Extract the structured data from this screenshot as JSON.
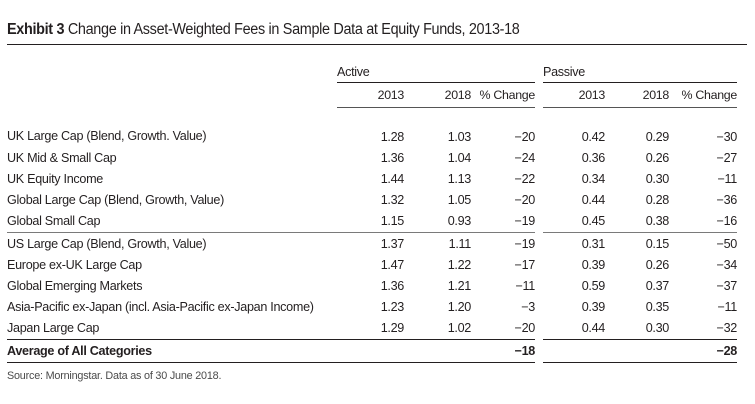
{
  "exhibit": {
    "label": "Exhibit 3",
    "title": "Change in Asset-Weighted Fees in Sample Data at Equity Funds, 2013-18"
  },
  "table": {
    "group_headers": {
      "active": "Active",
      "passive": "Passive"
    },
    "column_headers": {
      "active": [
        "2013",
        "2018",
        "% Change"
      ],
      "passive": [
        "2013",
        "2018",
        "% Change"
      ]
    },
    "rows": [
      {
        "category": "UK Large Cap (Blend, Growth. Value)",
        "active": [
          "1.28",
          "1.03",
          "−20"
        ],
        "passive": [
          "0.42",
          "0.29",
          "−30"
        ]
      },
      {
        "category": "UK Mid & Small Cap",
        "active": [
          "1.36",
          "1.04",
          "−24"
        ],
        "passive": [
          "0.36",
          "0.26",
          "−27"
        ]
      },
      {
        "category": "UK Equity Income",
        "active": [
          "1.44",
          "1.13",
          "−22"
        ],
        "passive": [
          "0.34",
          "0.30",
          "−11"
        ]
      },
      {
        "category": "Global Large Cap (Blend, Growth, Value)",
        "active": [
          "1.32",
          "1.05",
          "−20"
        ],
        "passive": [
          "0.44",
          "0.28",
          "−36"
        ]
      },
      {
        "category": "Global Small Cap",
        "active": [
          "1.15",
          "0.93",
          "−19"
        ],
        "passive": [
          "0.45",
          "0.38",
          "−16"
        ]
      },
      {
        "category": "US Large Cap (Blend, Growth, Value)",
        "active": [
          "1.37",
          "1.11",
          "−19"
        ],
        "passive": [
          "0.31",
          "0.15",
          "−50"
        ]
      },
      {
        "category": "Europe ex-UK Large Cap",
        "active": [
          "1.47",
          "1.22",
          "−17"
        ],
        "passive": [
          "0.39",
          "0.26",
          "−34"
        ]
      },
      {
        "category": "Global Emerging Markets",
        "active": [
          "1.36",
          "1.21",
          "−11"
        ],
        "passive": [
          "0.59",
          "0.37",
          "−37"
        ]
      },
      {
        "category": "Asia-Pacific ex-Japan (incl. Asia-Pacific ex-Japan Income)",
        "active": [
          "1.23",
          "1.20",
          "−3"
        ],
        "passive": [
          "0.39",
          "0.35",
          "−11"
        ]
      },
      {
        "category": "Japan Large Cap",
        "active": [
          "1.29",
          "1.02",
          "−20"
        ],
        "passive": [
          "0.44",
          "0.30",
          "−32"
        ]
      }
    ],
    "average": {
      "label": "Average of All Categories",
      "active_change": "−18",
      "passive_change": "−28"
    }
  },
  "source": "Source: Morningstar. Data as of 30 June 2018."
}
